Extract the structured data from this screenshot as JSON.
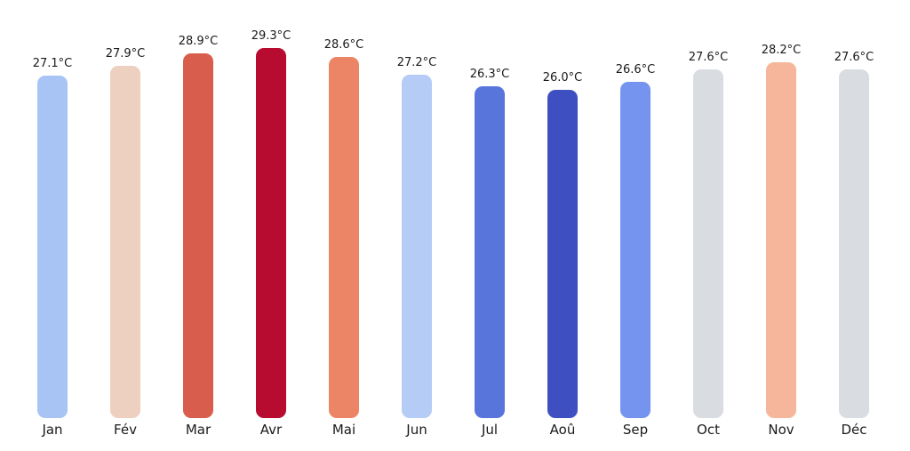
{
  "chart_data": {
    "type": "bar",
    "title": "",
    "xlabel": "",
    "ylabel": "",
    "unit": "°C",
    "grid": false,
    "legend": null,
    "ylim": [
      0,
      33.1
    ],
    "background_color": "#ffffff",
    "text_color": "#1a1a1a",
    "categories": [
      "Jan",
      "Fév",
      "Mar",
      "Avr",
      "Mai",
      "Jun",
      "Jul",
      "Aoû",
      "Sep",
      "Oct",
      "Nov",
      "Déc"
    ],
    "values": [
      27.1,
      27.9,
      28.9,
      29.3,
      28.6,
      27.2,
      26.3,
      26.0,
      26.6,
      27.6,
      28.2,
      27.6
    ],
    "value_labels": [
      "27.1°C",
      "27.9°C",
      "28.9°C",
      "29.3°C",
      "28.6°C",
      "27.2°C",
      "26.3°C",
      "26.0°C",
      "26.6°C",
      "27.6°C",
      "28.2°C",
      "27.6°C"
    ],
    "bar_colors": [
      "#a8c4f4",
      "#eed0c0",
      "#d95d4c",
      "#b70b30",
      "#ec8565",
      "#b5cdf6",
      "#5875dc",
      "#3e50c1",
      "#7594ef",
      "#d9dce1",
      "#f6b69b",
      "#d9dce1"
    ]
  }
}
